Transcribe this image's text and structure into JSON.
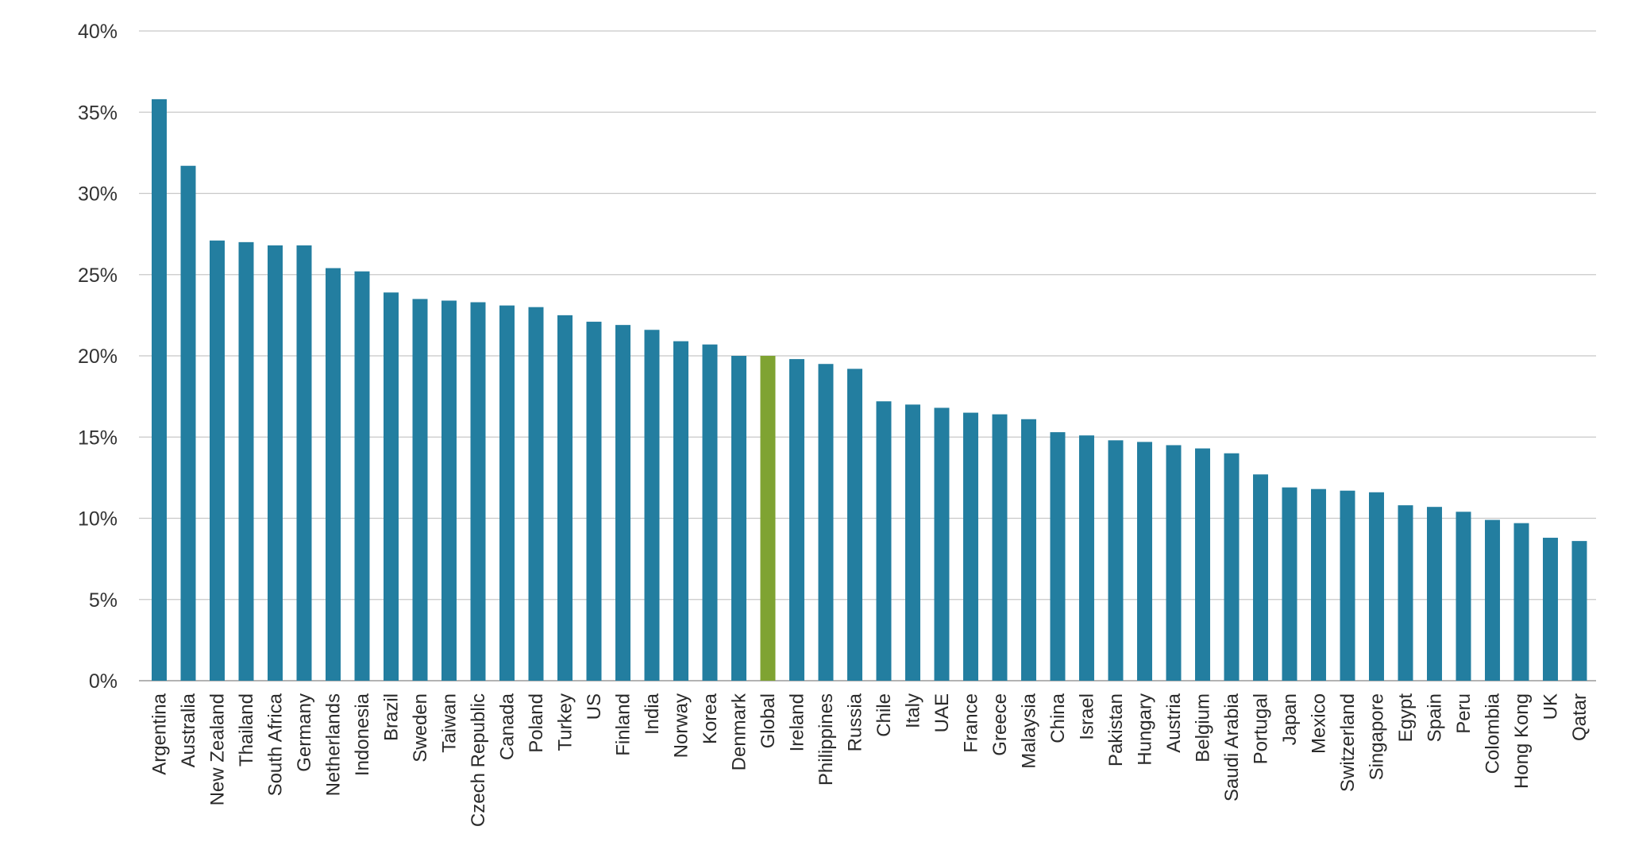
{
  "chart_data": {
    "type": "bar",
    "title": "",
    "xlabel": "",
    "ylabel": "",
    "ylim": [
      0,
      40
    ],
    "yticks": [
      "0%",
      "5%",
      "10%",
      "15%",
      "20%",
      "25%",
      "30%",
      "35%",
      "40%"
    ],
    "grid": true,
    "legend": "none",
    "colors": {
      "default": "#237ea0",
      "highlight": "#7fa332",
      "grid": "#c8c8c8"
    },
    "highlight_category": "Global",
    "categories": [
      "Argentina",
      "Australia",
      "New Zealand",
      "Thailand",
      "South Africa",
      "Germany",
      "Netherlands",
      "Indonesia",
      "Brazil",
      "Sweden",
      "Taiwan",
      "Czech Republic",
      "Canada",
      "Poland",
      "Turkey",
      "US",
      "Finland",
      "India",
      "Norway",
      "Korea",
      "Denmark",
      "Global",
      "Ireland",
      "Philippines",
      "Russia",
      "Chile",
      "Italy",
      "UAE",
      "France",
      "Greece",
      "Malaysia",
      "China",
      "Israel",
      "Pakistan",
      "Hungary",
      "Austria",
      "Belgium",
      "Saudi Arabia",
      "Portugal",
      "Japan",
      "Mexico",
      "Switzerland",
      "Singapore",
      "Egypt",
      "Spain",
      "Peru",
      "Colombia",
      "Hong Kong",
      "UK",
      "Qatar"
    ],
    "values": [
      35.8,
      31.7,
      27.1,
      27.0,
      26.8,
      26.8,
      25.4,
      25.2,
      23.9,
      23.5,
      23.4,
      23.3,
      23.1,
      23.0,
      22.5,
      22.1,
      21.9,
      21.6,
      20.9,
      20.7,
      20.0,
      20.0,
      19.8,
      19.5,
      19.2,
      17.2,
      17.0,
      16.8,
      16.5,
      16.4,
      16.1,
      15.3,
      15.1,
      14.8,
      14.7,
      14.5,
      14.3,
      14.0,
      12.7,
      11.9,
      11.8,
      11.7,
      11.6,
      10.8,
      10.7,
      10.4,
      9.9,
      9.7,
      8.8,
      8.6
    ]
  }
}
